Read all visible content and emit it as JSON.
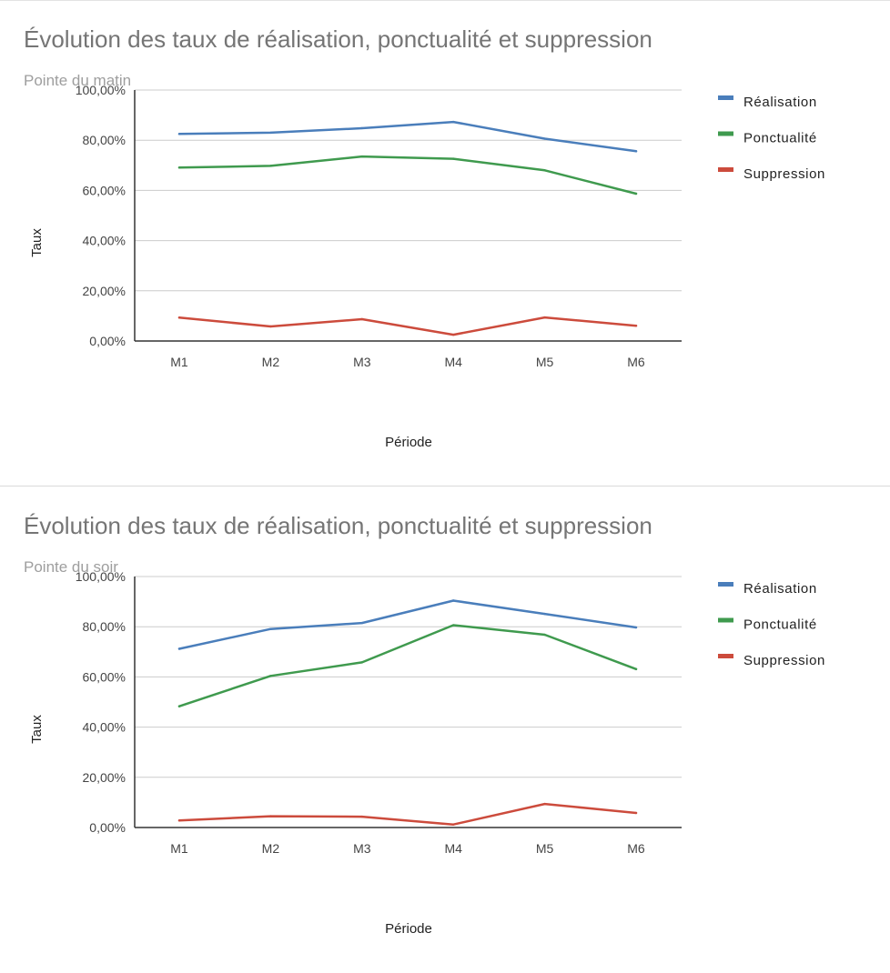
{
  "series_colors": {
    "Réalisation": "#4a7ebb",
    "Ponctualité": "#3f9a4e",
    "Suppression": "#cc4b3c"
  },
  "chart_data": [
    {
      "type": "line",
      "title": "Évolution des taux de réalisation, ponctualité et suppression",
      "subtitle": "Pointe du matin",
      "xlabel": "Période",
      "ylabel": "Taux",
      "categories": [
        "M1",
        "M2",
        "M3",
        "M4",
        "M5",
        "M6"
      ],
      "ylim": [
        0,
        100
      ],
      "yticks": [
        "0,00%",
        "20,00%",
        "40,00%",
        "60,00%",
        "80,00%",
        "100,00%"
      ],
      "grid": true,
      "legend": "right",
      "series": [
        {
          "name": "Réalisation",
          "values": [
            82.5,
            83.0,
            84.8,
            87.3,
            80.6,
            75.6
          ]
        },
        {
          "name": "Ponctualité",
          "values": [
            69.1,
            69.8,
            73.5,
            72.6,
            68.0,
            58.7
          ]
        },
        {
          "name": "Suppression",
          "values": [
            9.3,
            5.8,
            8.7,
            2.5,
            9.4,
            6.1
          ]
        }
      ]
    },
    {
      "type": "line",
      "title": "Évolution des taux de réalisation, ponctualité et suppression",
      "subtitle": "Pointe du soir",
      "xlabel": "Période",
      "ylabel": "Taux",
      "categories": [
        "M1",
        "M2",
        "M3",
        "M4",
        "M5",
        "M6"
      ],
      "ylim": [
        0,
        100
      ],
      "yticks": [
        "0,00%",
        "20,00%",
        "40,00%",
        "60,00%",
        "80,00%",
        "100,00%"
      ],
      "grid": true,
      "legend": "right",
      "series": [
        {
          "name": "Réalisation",
          "values": [
            71.2,
            79.1,
            81.5,
            90.4,
            85.1,
            79.7
          ]
        },
        {
          "name": "Ponctualité",
          "values": [
            48.3,
            60.4,
            65.8,
            80.6,
            76.8,
            63.1
          ]
        },
        {
          "name": "Suppression",
          "values": [
            2.8,
            4.5,
            4.3,
            1.2,
            9.4,
            5.8
          ]
        }
      ]
    }
  ]
}
